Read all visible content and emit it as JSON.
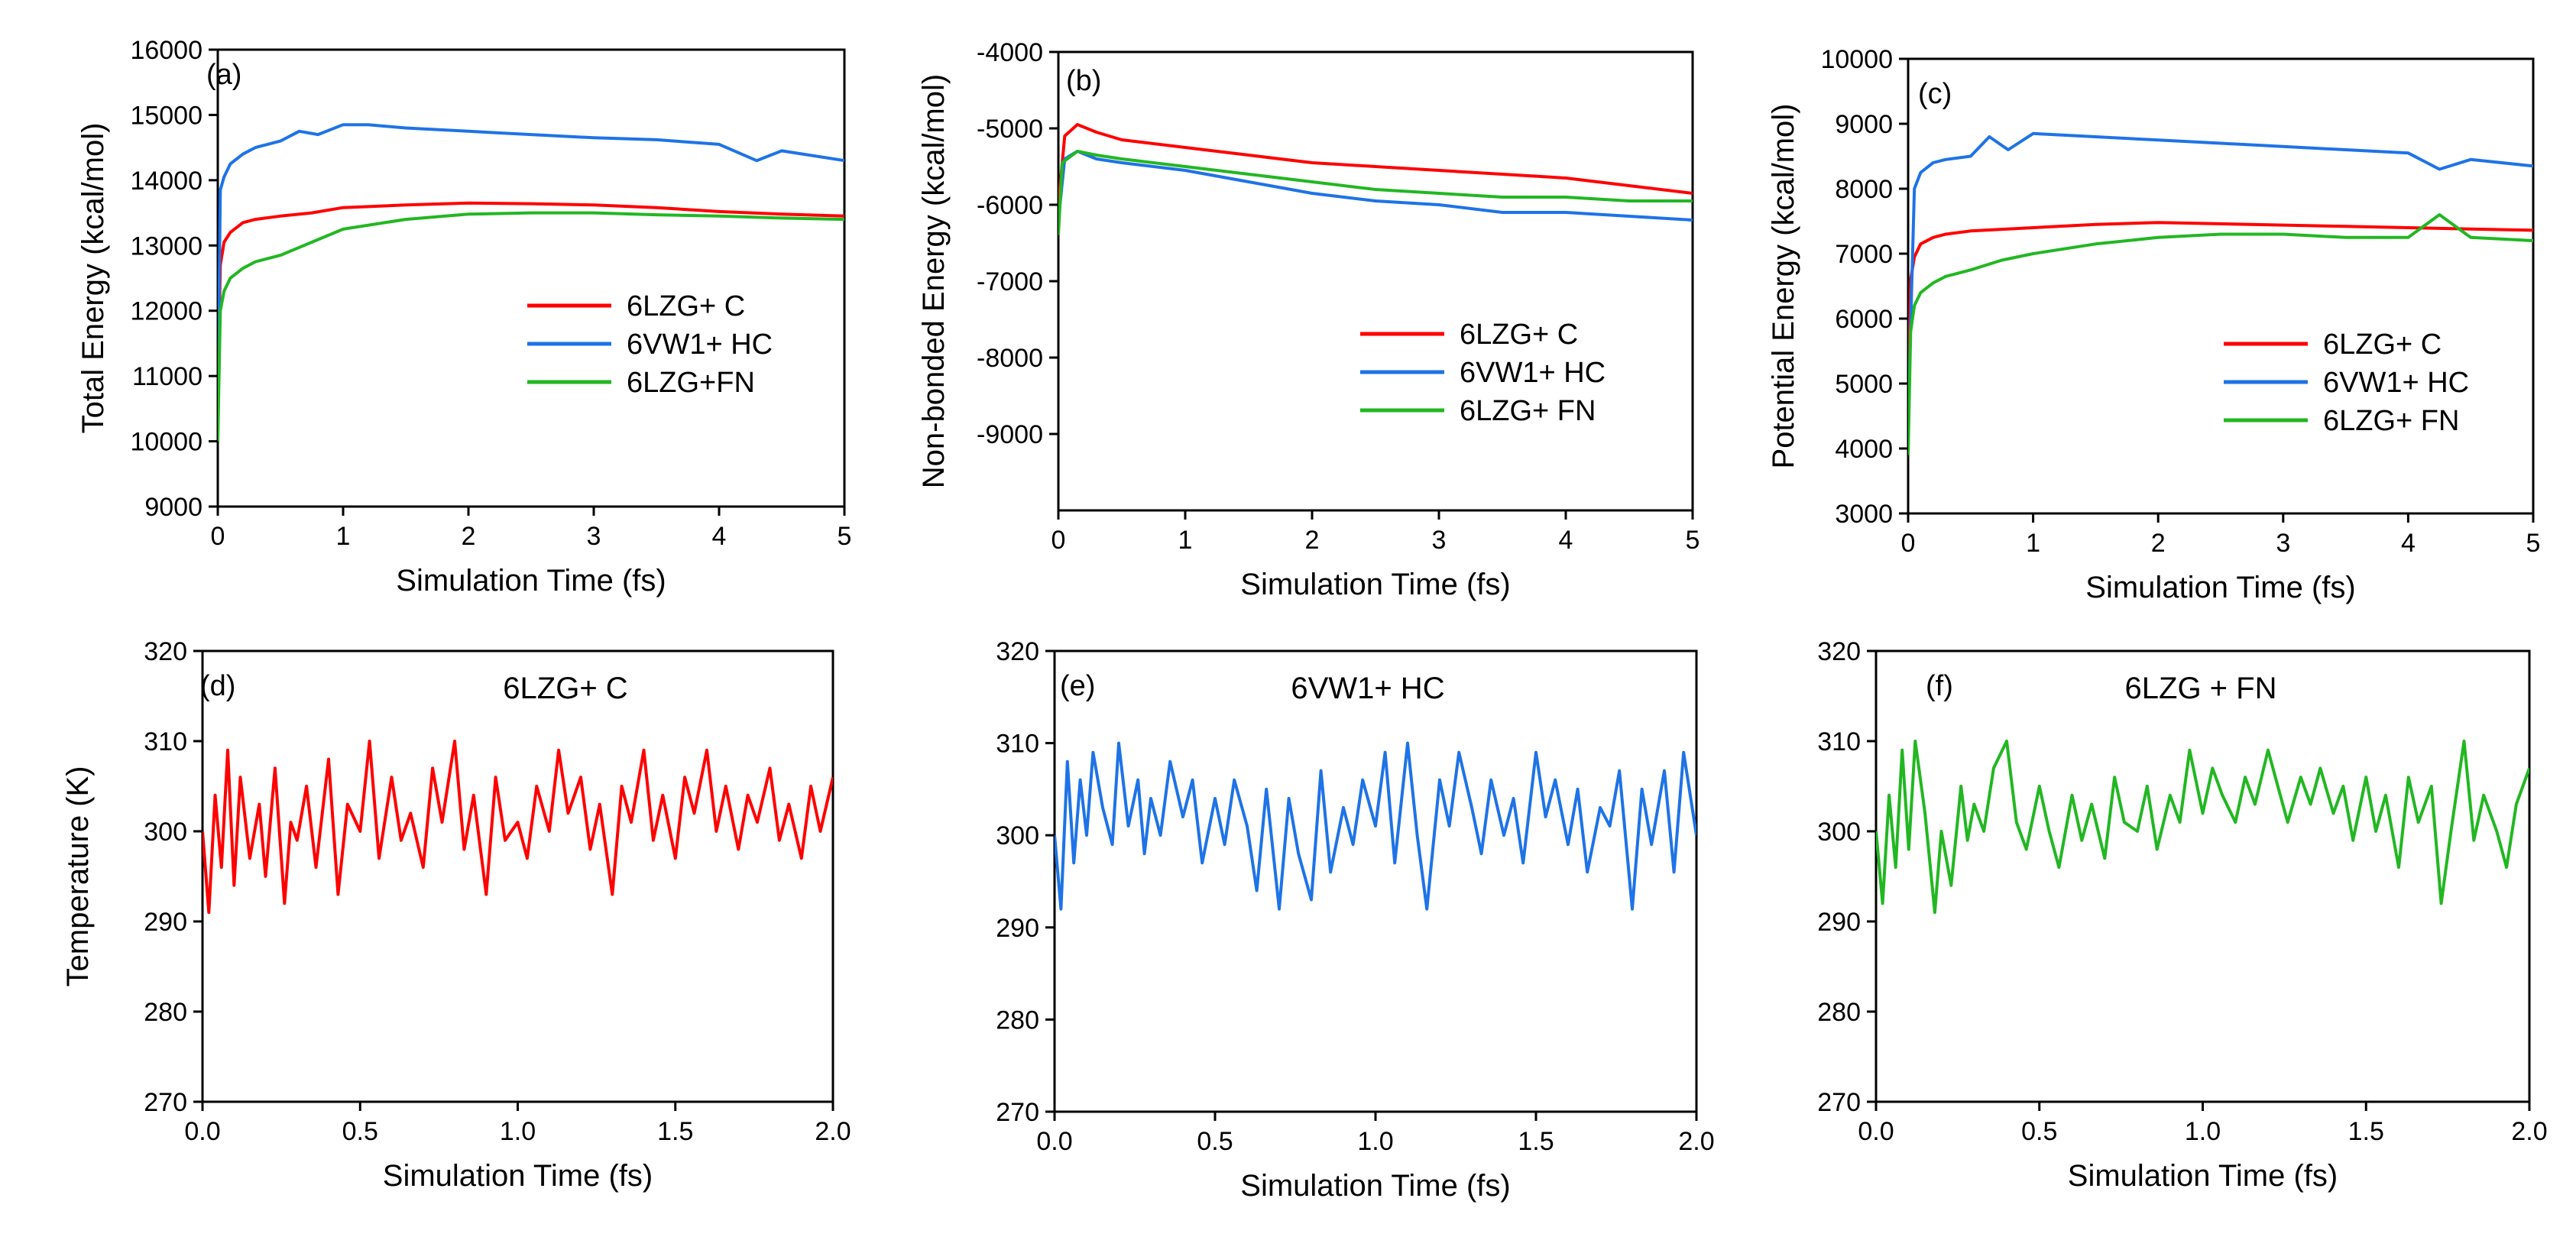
{
  "chart_data": [
    {
      "panel": "(a)",
      "type": "line",
      "xlabel": "Simulation Time (fs)",
      "ylabel": "Total Energy (kcal/mol)",
      "xlim": [
        0,
        5
      ],
      "ylim": [
        9000,
        16000
      ],
      "xticks": [
        "0",
        "1",
        "2",
        "3",
        "4",
        "5"
      ],
      "yticks": [
        "9000",
        "10000",
        "11000",
        "12000",
        "13000",
        "14000",
        "15000",
        "16000"
      ],
      "grid": false,
      "legend": "center-right",
      "series": [
        {
          "name": "6LZG+ C",
          "color": "#ff0000",
          "x": [
            0,
            0.02,
            0.05,
            0.1,
            0.2,
            0.3,
            0.5,
            0.75,
            1,
            1.5,
            2,
            2.5,
            3,
            3.5,
            4,
            4.5,
            5
          ],
          "y": [
            10700,
            12700,
            13050,
            13200,
            13350,
            13400,
            13450,
            13500,
            13580,
            13620,
            13650,
            13640,
            13620,
            13580,
            13520,
            13480,
            13450
          ]
        },
        {
          "name": "6VW1+ HC",
          "color": "#1e73e6",
          "x": [
            0,
            0.02,
            0.05,
            0.1,
            0.2,
            0.3,
            0.5,
            0.65,
            0.8,
            1,
            1.2,
            1.5,
            2,
            2.5,
            3,
            3.5,
            4,
            4.3,
            4.5,
            5
          ],
          "y": [
            10300,
            13850,
            14050,
            14250,
            14400,
            14500,
            14600,
            14750,
            14700,
            14850,
            14850,
            14800,
            14750,
            14700,
            14650,
            14620,
            14550,
            14300,
            14450,
            14300
          ]
        },
        {
          "name": "6LZG+FN",
          "color": "#22b722",
          "x": [
            0,
            0.02,
            0.05,
            0.1,
            0.2,
            0.3,
            0.5,
            0.75,
            1,
            1.5,
            2,
            2.5,
            3,
            3.5,
            4,
            4.5,
            5
          ],
          "y": [
            10000,
            12000,
            12300,
            12500,
            12650,
            12750,
            12850,
            13050,
            13250,
            13400,
            13480,
            13500,
            13500,
            13470,
            13450,
            13420,
            13400
          ]
        }
      ]
    },
    {
      "panel": "(b)",
      "type": "line",
      "xlabel": "Simulation Time (fs)",
      "ylabel": "Non-bonded Energy (kcal/mol)",
      "xlim": [
        0,
        5
      ],
      "ylim": [
        -10000,
        -4000
      ],
      "xticks": [
        "0",
        "1",
        "2",
        "3",
        "4",
        "5"
      ],
      "yticks": [
        "-4000",
        "-5000",
        "-6000",
        "-7000",
        "-8000",
        "-9000"
      ],
      "ytick_values": [
        -4000,
        -5000,
        -6000,
        -7000,
        -8000,
        -9000
      ],
      "grid": false,
      "legend": "center-right",
      "series": [
        {
          "name": "6LZG+ C",
          "color": "#ff0000",
          "x": [
            0,
            0.05,
            0.15,
            0.3,
            0.5,
            1,
            1.5,
            2,
            2.5,
            3,
            3.5,
            4,
            4.5,
            5
          ],
          "y": [
            -6000,
            -5100,
            -4950,
            -5050,
            -5150,
            -5250,
            -5350,
            -5450,
            -5500,
            -5550,
            -5600,
            -5650,
            -5750,
            -5850
          ]
        },
        {
          "name": "6VW1+ HC",
          "color": "#1e73e6",
          "x": [
            0,
            0.05,
            0.15,
            0.3,
            0.5,
            1,
            1.5,
            2,
            2.5,
            3,
            3.5,
            4,
            4.5,
            5
          ],
          "y": [
            -6200,
            -5400,
            -5300,
            -5400,
            -5450,
            -5550,
            -5700,
            -5850,
            -5950,
            -6000,
            -6100,
            -6100,
            -6150,
            -6200
          ]
        },
        {
          "name": "6LZG+ FN",
          "color": "#22b722",
          "x": [
            0,
            0.03,
            0.15,
            0.3,
            0.5,
            1,
            1.5,
            2,
            2.5,
            3,
            3.5,
            4,
            4.5,
            5
          ],
          "y": [
            -6400,
            -5450,
            -5300,
            -5350,
            -5400,
            -5500,
            -5600,
            -5700,
            -5800,
            -5850,
            -5900,
            -5900,
            -5950,
            -5950
          ]
        }
      ]
    },
    {
      "panel": "(c)",
      "type": "line",
      "xlabel": "Simulation Time (fs)",
      "ylabel": "Potential Energy (kcal/mol)",
      "xlim": [
        0,
        5
      ],
      "ylim": [
        3000,
        10000
      ],
      "xticks": [
        "0",
        "1",
        "2",
        "3",
        "4",
        "5"
      ],
      "yticks": [
        "3000",
        "4000",
        "5000",
        "6000",
        "7000",
        "8000",
        "9000",
        "10000"
      ],
      "grid": false,
      "legend": "center-right",
      "series": [
        {
          "name": "6LZG+ C",
          "color": "#ff0000",
          "x": [
            0,
            0.02,
            0.05,
            0.1,
            0.2,
            0.3,
            0.5,
            1,
            1.5,
            2,
            2.5,
            3,
            3.5,
            4,
            4.5,
            5
          ],
          "y": [
            4700,
            6600,
            6950,
            7150,
            7250,
            7300,
            7350,
            7400,
            7450,
            7480,
            7460,
            7440,
            7420,
            7400,
            7380,
            7360
          ]
        },
        {
          "name": "6VW1+ HC",
          "color": "#1e73e6",
          "x": [
            0,
            0.02,
            0.05,
            0.1,
            0.2,
            0.3,
            0.5,
            0.65,
            0.8,
            1,
            1.5,
            2,
            2.5,
            3,
            3.5,
            4,
            4.25,
            4.5,
            5
          ],
          "y": [
            4300,
            5900,
            8000,
            8250,
            8400,
            8450,
            8500,
            8800,
            8600,
            8850,
            8800,
            8750,
            8700,
            8650,
            8600,
            8550,
            8300,
            8450,
            8350
          ]
        },
        {
          "name": "6LZG+ FN",
          "color": "#22b722",
          "x": [
            0,
            0.02,
            0.05,
            0.1,
            0.2,
            0.3,
            0.5,
            0.75,
            1,
            1.5,
            2,
            2.5,
            3,
            3.5,
            4,
            4.25,
            4.5,
            5
          ],
          "y": [
            3900,
            5800,
            6200,
            6400,
            6550,
            6650,
            6750,
            6900,
            7000,
            7150,
            7250,
            7300,
            7300,
            7250,
            7250,
            7600,
            7250,
            7200
          ]
        }
      ]
    },
    {
      "panel": "(d)",
      "type": "line",
      "title": "6LZG+ C",
      "xlabel": "Simulation Time (fs)",
      "ylabel": "Temperature (K)",
      "xlim": [
        0,
        2
      ],
      "ylim": [
        270,
        320
      ],
      "xticks": [
        "0.0",
        "0.5",
        "1.0",
        "1.5",
        "2.0"
      ],
      "yticks": [
        "270",
        "280",
        "290",
        "300",
        "310",
        "320"
      ],
      "grid": false,
      "series": [
        {
          "color": "#ff0000",
          "x": [
            0,
            0.02,
            0.04,
            0.06,
            0.08,
            0.1,
            0.12,
            0.15,
            0.18,
            0.2,
            0.23,
            0.26,
            0.28,
            0.3,
            0.33,
            0.36,
            0.4,
            0.43,
            0.46,
            0.5,
            0.53,
            0.56,
            0.6,
            0.63,
            0.66,
            0.7,
            0.73,
            0.76,
            0.8,
            0.83,
            0.86,
            0.9,
            0.93,
            0.96,
            1.0,
            1.03,
            1.06,
            1.1,
            1.13,
            1.16,
            1.2,
            1.23,
            1.26,
            1.3,
            1.33,
            1.36,
            1.4,
            1.43,
            1.46,
            1.5,
            1.53,
            1.56,
            1.6,
            1.63,
            1.66,
            1.7,
            1.73,
            1.76,
            1.8,
            1.83,
            1.86,
            1.9,
            1.93,
            1.96,
            2.0
          ],
          "y": [
            300,
            291,
            304,
            296,
            309,
            294,
            306,
            297,
            303,
            295,
            307,
            292,
            301,
            299,
            305,
            296,
            308,
            293,
            303,
            300,
            310,
            297,
            306,
            299,
            302,
            296,
            307,
            301,
            310,
            298,
            304,
            293,
            306,
            299,
            301,
            297,
            305,
            300,
            309,
            302,
            306,
            298,
            303,
            293,
            305,
            301,
            309,
            299,
            304,
            297,
            306,
            302,
            309,
            300,
            305,
            298,
            304,
            301,
            307,
            299,
            303,
            297,
            305,
            300,
            306
          ]
        }
      ]
    },
    {
      "panel": "(e)",
      "type": "line",
      "title": "6VW1+ HC",
      "xlabel": "Simulation Time (fs)",
      "ylabel": "",
      "xlim": [
        0,
        2
      ],
      "ylim": [
        270,
        320
      ],
      "xticks": [
        "0.0",
        "0.5",
        "1.0",
        "1.5",
        "2.0"
      ],
      "yticks": [
        "270",
        "280",
        "290",
        "300",
        "310",
        "320"
      ],
      "grid": false,
      "series": [
        {
          "color": "#1e73e6",
          "x": [
            0,
            0.02,
            0.04,
            0.06,
            0.08,
            0.1,
            0.12,
            0.15,
            0.18,
            0.2,
            0.23,
            0.26,
            0.28,
            0.3,
            0.33,
            0.36,
            0.4,
            0.43,
            0.46,
            0.5,
            0.53,
            0.56,
            0.6,
            0.63,
            0.66,
            0.7,
            0.73,
            0.76,
            0.8,
            0.83,
            0.86,
            0.9,
            0.93,
            0.96,
            1.0,
            1.03,
            1.06,
            1.1,
            1.13,
            1.16,
            1.2,
            1.23,
            1.26,
            1.3,
            1.33,
            1.36,
            1.4,
            1.43,
            1.46,
            1.5,
            1.53,
            1.56,
            1.6,
            1.63,
            1.66,
            1.7,
            1.73,
            1.76,
            1.8,
            1.83,
            1.86,
            1.9,
            1.93,
            1.96,
            2.0
          ],
          "y": [
            300,
            292,
            308,
            297,
            306,
            300,
            309,
            303,
            299,
            310,
            301,
            306,
            298,
            304,
            300,
            308,
            302,
            306,
            297,
            304,
            299,
            306,
            301,
            294,
            305,
            292,
            304,
            298,
            293,
            307,
            296,
            303,
            299,
            306,
            301,
            309,
            297,
            310,
            300,
            292,
            306,
            301,
            309,
            303,
            298,
            306,
            300,
            304,
            297,
            309,
            302,
            306,
            299,
            305,
            296,
            303,
            301,
            307,
            292,
            305,
            299,
            307,
            296,
            309,
            300
          ]
        }
      ]
    },
    {
      "panel": "(f)",
      "type": "line",
      "title": "6LZG + FN",
      "xlabel": "Simulation Time (fs)",
      "ylabel": "",
      "xlim": [
        0,
        2
      ],
      "ylim": [
        270,
        320
      ],
      "xticks": [
        "0.0",
        "0.5",
        "1.0",
        "1.5",
        "2.0"
      ],
      "yticks": [
        "270",
        "280",
        "290",
        "300",
        "310",
        "320"
      ],
      "grid": false,
      "series": [
        {
          "color": "#22b722",
          "x": [
            0,
            0.02,
            0.04,
            0.06,
            0.08,
            0.1,
            0.12,
            0.15,
            0.18,
            0.2,
            0.23,
            0.26,
            0.28,
            0.3,
            0.33,
            0.36,
            0.4,
            0.43,
            0.46,
            0.5,
            0.53,
            0.56,
            0.6,
            0.63,
            0.66,
            0.7,
            0.73,
            0.76,
            0.8,
            0.83,
            0.86,
            0.9,
            0.93,
            0.96,
            1.0,
            1.03,
            1.06,
            1.1,
            1.13,
            1.16,
            1.2,
            1.23,
            1.26,
            1.3,
            1.33,
            1.36,
            1.4,
            1.43,
            1.46,
            1.5,
            1.53,
            1.56,
            1.6,
            1.63,
            1.66,
            1.7,
            1.73,
            1.76,
            1.8,
            1.83,
            1.86,
            1.9,
            1.93,
            1.96,
            2.0
          ],
          "y": [
            300,
            292,
            304,
            296,
            309,
            298,
            310,
            302,
            291,
            300,
            294,
            305,
            299,
            303,
            300,
            307,
            310,
            301,
            298,
            305,
            300,
            296,
            304,
            299,
            303,
            297,
            306,
            301,
            300,
            305,
            298,
            304,
            301,
            309,
            302,
            307,
            304,
            301,
            306,
            303,
            309,
            305,
            301,
            306,
            303,
            307,
            302,
            305,
            299,
            306,
            300,
            304,
            296,
            306,
            301,
            305,
            292,
            300,
            310,
            299,
            304,
            300,
            296,
            303,
            307
          ]
        }
      ]
    }
  ]
}
